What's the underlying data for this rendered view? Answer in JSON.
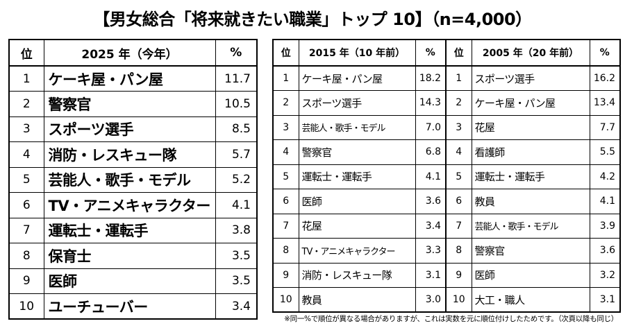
{
  "title": "【男女総合「将来就きたい職業」トップ 10】（n=4,000）",
  "chart_data": [
    {
      "type": "table",
      "columns": [
        "位",
        "2025 年（今年）",
        "%"
      ],
      "rows": [
        {
          "rank": "1",
          "job": "ケーキ屋・パン屋",
          "pct": 11.7
        },
        {
          "rank": "2",
          "job": "警察官",
          "pct": 10.5
        },
        {
          "rank": "3",
          "job": "スポーツ選手",
          "pct": 8.5
        },
        {
          "rank": "4",
          "job": "消防・レスキュー隊",
          "pct": 5.7
        },
        {
          "rank": "5",
          "job": "芸能人・歌手・モデル",
          "pct": 5.2
        },
        {
          "rank": "6",
          "job": "TV・アニメキャラクター",
          "pct": 4.1
        },
        {
          "rank": "7",
          "job": "運転士・運転手",
          "pct": 3.8
        },
        {
          "rank": "8",
          "job": "保育士",
          "pct": 3.5
        },
        {
          "rank": "9",
          "job": "医師",
          "pct": 3.5
        },
        {
          "rank": "10",
          "job": "ユーチューバー",
          "pct": 3.4
        }
      ]
    },
    {
      "type": "table",
      "columns": [
        "位",
        "2015 年（10 年前）",
        "%"
      ],
      "rows": [
        {
          "rank": "1",
          "job": "ケーキ屋・パン屋",
          "pct": 18.2
        },
        {
          "rank": "2",
          "job": "スポーツ選手",
          "pct": 14.3
        },
        {
          "rank": "3",
          "job": "芸能人・歌手・モデル",
          "pct": 7.0
        },
        {
          "rank": "4",
          "job": "警察官",
          "pct": 6.8
        },
        {
          "rank": "5",
          "job": "運転士・運転手",
          "pct": 4.1
        },
        {
          "rank": "6",
          "job": "医師",
          "pct": 3.6
        },
        {
          "rank": "7",
          "job": "花屋",
          "pct": 3.4
        },
        {
          "rank": "8",
          "job": "TV・アニメキャラクター",
          "pct": 3.3
        },
        {
          "rank": "9",
          "job": "消防・レスキュー隊",
          "pct": 3.1
        },
        {
          "rank": "10",
          "job": "教員",
          "pct": 3.0
        }
      ]
    },
    {
      "type": "table",
      "columns": [
        "位",
        "2005 年（20 年前）",
        "%"
      ],
      "rows": [
        {
          "rank": "1",
          "job": "スポーツ選手",
          "pct": 16.2
        },
        {
          "rank": "2",
          "job": "ケーキ屋・パン屋",
          "pct": 13.4
        },
        {
          "rank": "3",
          "job": "花屋",
          "pct": 7.7
        },
        {
          "rank": "4",
          "job": "看護師",
          "pct": 5.5
        },
        {
          "rank": "5",
          "job": "運転士・運転手",
          "pct": 4.2
        },
        {
          "rank": "6",
          "job": "教員",
          "pct": 4.1
        },
        {
          "rank": "7",
          "job": "芸能人・歌手・モデル",
          "pct": 3.9
        },
        {
          "rank": "8",
          "job": "警察官",
          "pct": 3.6
        },
        {
          "rank": "9",
          "job": "医師",
          "pct": 3.2
        },
        {
          "rank": "10",
          "job": "大工・職人",
          "pct": 3.1
        }
      ]
    }
  ],
  "footnote": "※同一%で順位が異なる場合がありますが、これは実数を元に順位付けしたためです。（次頁以降も同じ）"
}
